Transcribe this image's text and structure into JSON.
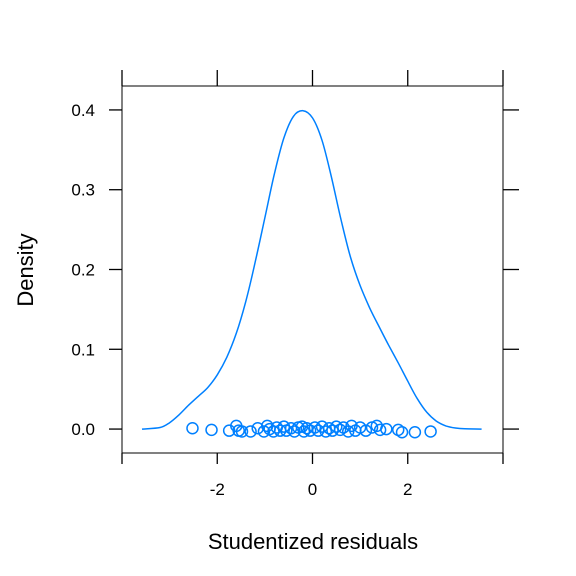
{
  "chart_data": {
    "type": "density",
    "title": "",
    "xlabel": "Studentized residuals",
    "ylabel": "Density",
    "xlim": [
      -4.0,
      4.0
    ],
    "ylim": [
      -0.03,
      0.43
    ],
    "x_ticks": [
      {
        "value": -2,
        "label": "-2"
      },
      {
        "value": 0,
        "label": "0"
      },
      {
        "value": 2,
        "label": "2"
      }
    ],
    "y_ticks": [
      {
        "value": 0.0,
        "label": "0.0"
      },
      {
        "value": 0.1,
        "label": "0.1"
      },
      {
        "value": 0.2,
        "label": "0.2"
      },
      {
        "value": 0.3,
        "label": "0.3"
      },
      {
        "value": 0.4,
        "label": "0.4"
      }
    ],
    "grid": false,
    "color": "#0080ff",
    "density_curve": [
      [
        -3.58,
        0.0
      ],
      [
        -3.2,
        0.002
      ],
      [
        -3.0,
        0.008
      ],
      [
        -2.8,
        0.018
      ],
      [
        -2.6,
        0.03
      ],
      [
        -2.4,
        0.041
      ],
      [
        -2.2,
        0.052
      ],
      [
        -2.0,
        0.068
      ],
      [
        -1.8,
        0.09
      ],
      [
        -1.6,
        0.12
      ],
      [
        -1.4,
        0.16
      ],
      [
        -1.2,
        0.21
      ],
      [
        -1.0,
        0.265
      ],
      [
        -0.8,
        0.32
      ],
      [
        -0.6,
        0.365
      ],
      [
        -0.4,
        0.392
      ],
      [
        -0.2,
        0.399
      ],
      [
        0.0,
        0.39
      ],
      [
        0.2,
        0.362
      ],
      [
        0.4,
        0.315
      ],
      [
        0.6,
        0.262
      ],
      [
        0.8,
        0.215
      ],
      [
        1.0,
        0.18
      ],
      [
        1.2,
        0.152
      ],
      [
        1.4,
        0.128
      ],
      [
        1.6,
        0.105
      ],
      [
        1.8,
        0.083
      ],
      [
        2.0,
        0.06
      ],
      [
        2.2,
        0.038
      ],
      [
        2.4,
        0.021
      ],
      [
        2.6,
        0.01
      ],
      [
        2.8,
        0.004
      ],
      [
        3.0,
        0.0013
      ],
      [
        3.2,
        0.0003
      ],
      [
        3.55,
        0.0
      ]
    ],
    "rug_points": [
      {
        "x": -2.52,
        "y": 0.001
      },
      {
        "x": -2.12,
        "y": -0.001
      },
      {
        "x": -1.75,
        "y": -0.002
      },
      {
        "x": -1.6,
        "y": 0.004
      },
      {
        "x": -1.55,
        "y": -0.002
      },
      {
        "x": -1.48,
        "y": -0.003
      },
      {
        "x": -1.3,
        "y": -0.003
      },
      {
        "x": -1.15,
        "y": 0.001
      },
      {
        "x": -1.02,
        "y": -0.003
      },
      {
        "x": -0.95,
        "y": 0.004
      },
      {
        "x": -0.9,
        "y": 0.0
      },
      {
        "x": -0.82,
        "y": -0.003
      },
      {
        "x": -0.75,
        "y": 0.002
      },
      {
        "x": -0.68,
        "y": -0.002
      },
      {
        "x": -0.6,
        "y": 0.003
      },
      {
        "x": -0.55,
        "y": -0.002
      },
      {
        "x": -0.45,
        "y": 0.001
      },
      {
        "x": -0.38,
        "y": -0.003
      },
      {
        "x": -0.3,
        "y": 0.002
      },
      {
        "x": -0.22,
        "y": 0.003
      },
      {
        "x": -0.18,
        "y": -0.003
      },
      {
        "x": -0.12,
        "y": 0.001
      },
      {
        "x": -0.05,
        "y": -0.002
      },
      {
        "x": 0.05,
        "y": 0.002
      },
      {
        "x": 0.12,
        "y": -0.002
      },
      {
        "x": 0.2,
        "y": 0.003
      },
      {
        "x": 0.28,
        "y": -0.003
      },
      {
        "x": 0.35,
        "y": 0.001
      },
      {
        "x": 0.42,
        "y": -0.002
      },
      {
        "x": 0.5,
        "y": 0.003
      },
      {
        "x": 0.58,
        "y": -0.001
      },
      {
        "x": 0.65,
        "y": 0.002
      },
      {
        "x": 0.75,
        "y": -0.003
      },
      {
        "x": 0.82,
        "y": 0.004
      },
      {
        "x": 0.9,
        "y": -0.002
      },
      {
        "x": 1.0,
        "y": 0.002
      },
      {
        "x": 1.12,
        "y": -0.002
      },
      {
        "x": 1.25,
        "y": 0.002
      },
      {
        "x": 1.35,
        "y": 0.004
      },
      {
        "x": 1.42,
        "y": -0.001
      },
      {
        "x": 1.55,
        "y": 0.0
      },
      {
        "x": 1.8,
        "y": -0.001
      },
      {
        "x": 1.88,
        "y": -0.004
      },
      {
        "x": 2.15,
        "y": -0.004
      },
      {
        "x": 2.48,
        "y": -0.003
      }
    ]
  }
}
